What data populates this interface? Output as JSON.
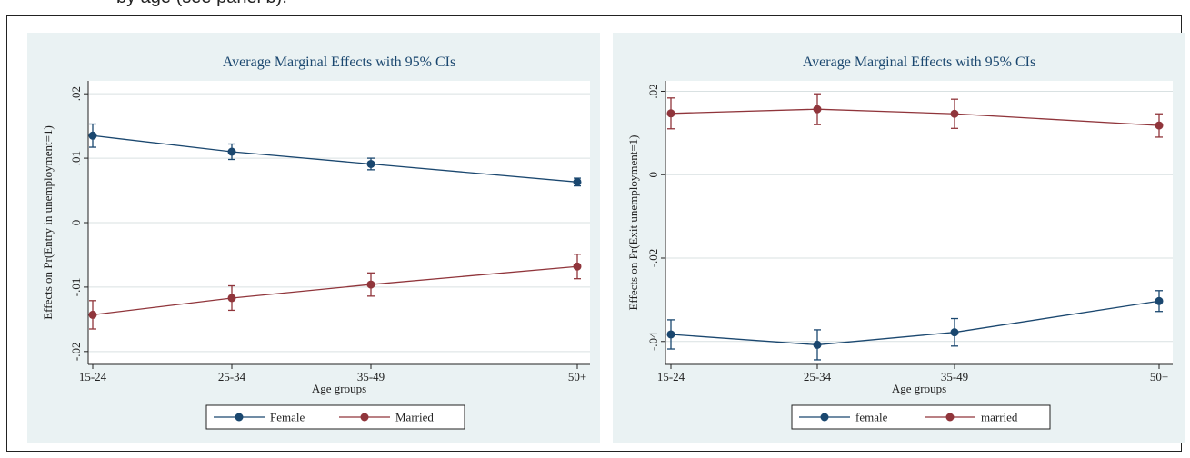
{
  "caption": "by age (see panel b).",
  "colors": {
    "panel_bg": "#eaf2f3",
    "blue": "#1a476f",
    "maroon": "#90353b",
    "grid": "#d9e1e2"
  },
  "chart_data": [
    {
      "type": "line",
      "title": "Average Marginal Effects with 95% CIs",
      "xlabel": "Age groups",
      "ylabel": "Effects on Pr(Entry in unemployment=1)",
      "categories": [
        "15-24",
        "25-34",
        "35-49",
        "50+"
      ],
      "y_ticks": [
        -0.02,
        -0.01,
        0,
        0.01,
        0.02
      ],
      "y_tick_labels": [
        "-.02",
        "-.01",
        "0",
        ".01",
        ".02"
      ],
      "ylim": [
        -0.022,
        0.022
      ],
      "grid": true,
      "legend_position": "bottom",
      "series": [
        {
          "name": "Female",
          "color": "#1a476f",
          "values": [
            0.0135,
            0.011,
            0.0091,
            0.0063
          ],
          "ci_low": [
            0.0117,
            0.0098,
            0.0082,
            0.0057
          ],
          "ci_high": [
            0.0153,
            0.0122,
            0.01,
            0.0069
          ]
        },
        {
          "name": "Married",
          "color": "#90353b",
          "values": [
            -0.0143,
            -0.0117,
            -0.0096,
            -0.0068
          ],
          "ci_low": [
            -0.0165,
            -0.0136,
            -0.0114,
            -0.0087
          ],
          "ci_high": [
            -0.0121,
            -0.0098,
            -0.0078,
            -0.0049
          ]
        }
      ]
    },
    {
      "type": "line",
      "title": "Average Marginal Effects with 95% CIs",
      "xlabel": "Age groups",
      "ylabel": "Effects on Pr(Exit unemployment=1)",
      "categories": [
        "15-24",
        "25-34",
        "35-49",
        "50+"
      ],
      "y_ticks": [
        -0.04,
        -0.02,
        0,
        0.02
      ],
      "y_tick_labels": [
        "-.04",
        "-.02",
        "0",
        ".02"
      ],
      "ylim": [
        -0.0455,
        0.0225
      ],
      "grid": true,
      "legend_position": "bottom",
      "series": [
        {
          "name": "female",
          "color": "#1a476f",
          "values": [
            -0.0383,
            -0.0408,
            -0.0378,
            -0.0303
          ],
          "ci_low": [
            -0.0418,
            -0.0444,
            -0.0411,
            -0.0328
          ],
          "ci_high": [
            -0.0348,
            -0.0372,
            -0.0345,
            -0.0278
          ]
        },
        {
          "name": "married",
          "color": "#90353b",
          "values": [
            0.0147,
            0.0157,
            0.0146,
            0.0118
          ],
          "ci_low": [
            0.011,
            0.012,
            0.0111,
            0.009
          ],
          "ci_high": [
            0.0184,
            0.0194,
            0.0181,
            0.0146
          ]
        }
      ]
    }
  ]
}
